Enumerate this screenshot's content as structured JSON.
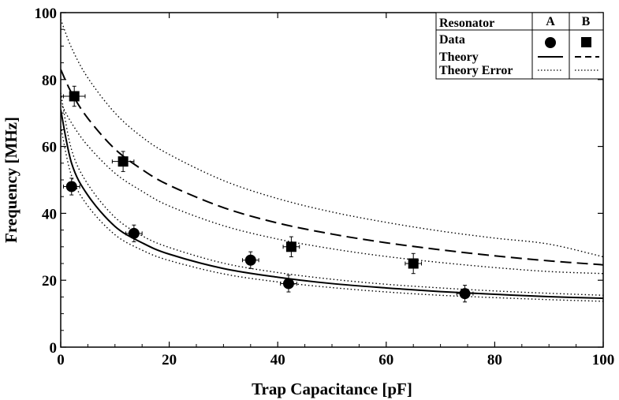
{
  "chart_data": {
    "type": "scatter",
    "xlabel": "Trap Capacitance [pF]",
    "ylabel": "Frequency [MHz]",
    "xlim": [
      0,
      100
    ],
    "ylim": [
      0,
      100
    ],
    "xticks": [
      "0",
      "20",
      "40",
      "60",
      "80",
      "100"
    ],
    "yticks": [
      "0",
      "20",
      "40",
      "60",
      "80",
      "100"
    ],
    "grid": false,
    "legend": {
      "position": "top-right",
      "header": "Resonator",
      "col_a": "A",
      "col_b": "B",
      "rows": [
        "Data",
        "Theory",
        "Theory Error"
      ]
    },
    "series": [
      {
        "name": "A",
        "kind": "data",
        "marker": "circle",
        "points": [
          {
            "x": 2,
            "y": 48,
            "xerr": 1.5,
            "yerr": 2.5
          },
          {
            "x": 13.5,
            "y": 34,
            "xerr": 1.5,
            "yerr": 2.5
          },
          {
            "x": 35,
            "y": 26,
            "xerr": 1.5,
            "yerr": 2.5
          },
          {
            "x": 42,
            "y": 19,
            "xerr": 1.5,
            "yerr": 2.5
          },
          {
            "x": 74.5,
            "y": 16,
            "xerr": 1.5,
            "yerr": 2.5
          }
        ]
      },
      {
        "name": "B",
        "kind": "data",
        "marker": "square",
        "points": [
          {
            "x": 2.5,
            "y": 75,
            "xerr": 2,
            "yerr": 3
          },
          {
            "x": 11.5,
            "y": 55.5,
            "xerr": 2,
            "yerr": 3
          },
          {
            "x": 42.5,
            "y": 30,
            "xerr": 1.5,
            "yerr": 3
          },
          {
            "x": 65,
            "y": 25,
            "xerr": 1.5,
            "yerr": 3
          }
        ]
      },
      {
        "name": "A Theory",
        "kind": "theory",
        "style": "solid",
        "x": [
          0,
          2,
          5,
          10,
          15,
          20,
          30,
          40,
          50,
          60,
          70,
          80,
          90,
          100
        ],
        "y": [
          71,
          55,
          45.4,
          36.1,
          31.2,
          27.8,
          23.5,
          20.9,
          19.0,
          17.7,
          16.6,
          15.8,
          15.1,
          14.6
        ]
      },
      {
        "name": "A Theory Error Upper",
        "kind": "error",
        "style": "dotted",
        "x": [
          0,
          2,
          5,
          10,
          15,
          20,
          30,
          40,
          50,
          60,
          70,
          80,
          90,
          100
        ],
        "y": [
          76,
          59,
          48.7,
          38.8,
          33.3,
          29.8,
          25.1,
          22.3,
          20.3,
          18.8,
          17.7,
          16.8,
          16.1,
          15.5
        ]
      },
      {
        "name": "A Theory Error Lower",
        "kind": "error",
        "style": "dotted",
        "x": [
          0,
          2,
          5,
          10,
          15,
          20,
          30,
          40,
          50,
          60,
          70,
          80,
          90,
          100
        ],
        "y": [
          66,
          51.2,
          42.2,
          33.6,
          29.0,
          25.9,
          21.9,
          19.5,
          17.8,
          16.5,
          15.5,
          14.8,
          14.2,
          13.7
        ]
      },
      {
        "name": "B Theory",
        "kind": "theory",
        "style": "dashed",
        "x": [
          0,
          2,
          5,
          10,
          15,
          20,
          30,
          40,
          50,
          60,
          70,
          80,
          90,
          100
        ],
        "y": [
          83,
          76,
          68.4,
          59.2,
          53.1,
          48.4,
          41.7,
          37.1,
          33.8,
          31.2,
          29.1,
          27.3,
          25.8,
          24.6
        ]
      },
      {
        "name": "B Theory Error Upper",
        "kind": "error",
        "style": "dotted",
        "x": [
          0,
          2,
          5,
          10,
          15,
          20,
          30,
          40,
          50,
          60,
          70,
          80,
          90,
          100
        ],
        "y": [
          98,
          89.5,
          80.5,
          70.0,
          62.8,
          57.6,
          49.8,
          44.4,
          40.4,
          37.3,
          34.7,
          32.6,
          30.8,
          27
        ]
      },
      {
        "name": "B Theory Error Lower",
        "kind": "error",
        "style": "dotted",
        "x": [
          0,
          2,
          5,
          10,
          15,
          20,
          30,
          40,
          50,
          60,
          70,
          80,
          90,
          100
        ],
        "y": [
          73,
          67.0,
          60.2,
          52.0,
          46.6,
          42.2,
          36.3,
          32.3,
          29.4,
          27.1,
          25.3,
          23.8,
          22.6,
          22
        ]
      }
    ]
  }
}
